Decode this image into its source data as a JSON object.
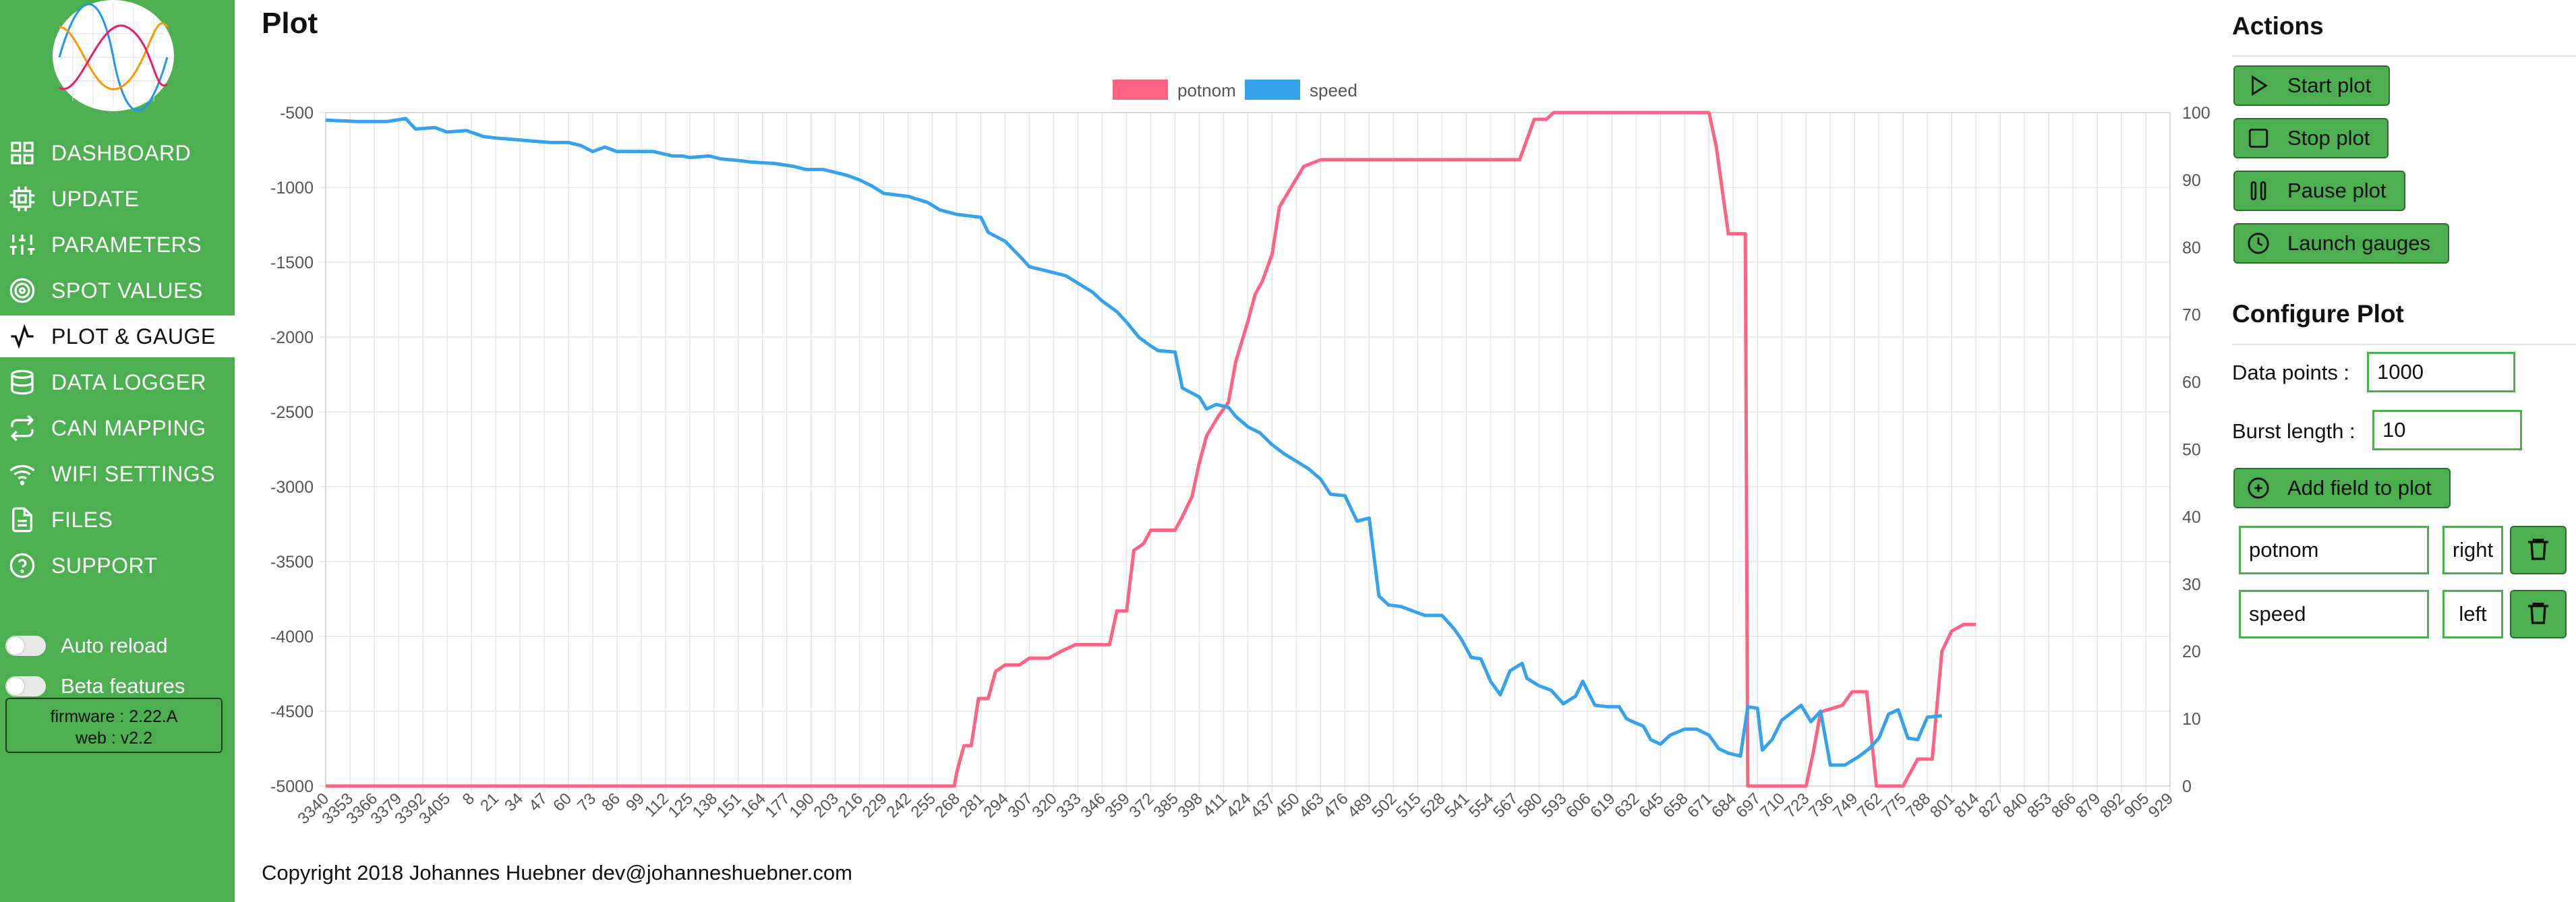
{
  "sidebar": {
    "items": [
      {
        "label": "DASHBOARD",
        "icon": "dashboard-grid-icon"
      },
      {
        "label": "UPDATE",
        "icon": "chip-icon"
      },
      {
        "label": "PARAMETERS",
        "icon": "sliders-icon"
      },
      {
        "label": "SPOT VALUES",
        "icon": "target-icon"
      },
      {
        "label": "PLOT & GAUGE",
        "icon": "activity-icon",
        "active": true
      },
      {
        "label": "DATA LOGGER",
        "icon": "database-icon"
      },
      {
        "label": "CAN MAPPING",
        "icon": "repeat-icon"
      },
      {
        "label": "WIFI SETTINGS",
        "icon": "wifi-icon"
      },
      {
        "label": "FILES",
        "icon": "file-icon"
      },
      {
        "label": "SUPPORT",
        "icon": "help-circle-icon"
      }
    ],
    "toggles": [
      {
        "label": "Auto reload",
        "on": false
      },
      {
        "label": "Beta features",
        "on": false
      }
    ],
    "firmware": "firmware : 2.22.A",
    "web": "web : v2.2"
  },
  "main": {
    "title": "Plot",
    "copyright": "Copyright 2018 Johannes Huebner dev@johanneshuebner.com"
  },
  "actions": {
    "title": "Actions",
    "start": "Start plot",
    "stop": "Stop plot",
    "pause": "Pause plot",
    "gauges": "Launch gauges"
  },
  "configure": {
    "title": "Configure Plot",
    "data_points_label": "Data points :",
    "data_points_value": "1000",
    "burst_length_label": "Burst length :",
    "burst_length_value": "10",
    "add_field": "Add field to plot",
    "fields": [
      {
        "name": "potnom",
        "axis": "right"
      },
      {
        "name": "speed",
        "axis": "left"
      }
    ]
  },
  "colors": {
    "green": "#4caf50",
    "potnom": "#ff6384",
    "speed": "#36a2eb"
  },
  "chart_data": {
    "type": "line",
    "title": "",
    "x_labels": [
      "3340",
      "3353",
      "3366",
      "3379",
      "3392",
      "3405",
      "8",
      "21",
      "34",
      "47",
      "60",
      "73",
      "86",
      "99",
      "112",
      "125",
      "138",
      "151",
      "164",
      "177",
      "190",
      "203",
      "216",
      "229",
      "242",
      "255",
      "268",
      "281",
      "294",
      "307",
      "320",
      "333",
      "346",
      "359",
      "372",
      "385",
      "398",
      "411",
      "424",
      "437",
      "450",
      "463",
      "476",
      "489",
      "502",
      "515",
      "528",
      "541",
      "554",
      "567",
      "580",
      "593",
      "606",
      "619",
      "632",
      "645",
      "658",
      "671",
      "684",
      "697",
      "710",
      "723",
      "736",
      "749",
      "762",
      "775",
      "788",
      "801",
      "814",
      "827",
      "840",
      "853",
      "866",
      "879",
      "892",
      "905",
      "929"
    ],
    "y_left": {
      "min": -5000,
      "max": -500,
      "ticks": [
        -500,
        -1000,
        -1500,
        -2000,
        -2500,
        -3000,
        -3500,
        -4000,
        -4500,
        -5000
      ]
    },
    "y_right": {
      "min": 0,
      "max": 100,
      "ticks": [
        100,
        90,
        80,
        70,
        60,
        50,
        40,
        30,
        20,
        10,
        0
      ]
    },
    "legend": {
      "position": "top",
      "entries": [
        "potnom",
        "speed"
      ]
    },
    "grid": true,
    "series": [
      {
        "name": "potnom",
        "axis": "right",
        "points": [
          [
            0,
            0
          ],
          [
            25.9,
            0
          ],
          [
            26.0,
            2
          ],
          [
            26.3,
            6
          ],
          [
            26.6,
            6
          ],
          [
            26.9,
            13
          ],
          [
            27.3,
            13
          ],
          [
            27.6,
            17
          ],
          [
            28.0,
            18
          ],
          [
            28.6,
            18
          ],
          [
            29.0,
            19
          ],
          [
            29.8,
            19
          ],
          [
            30.3,
            20
          ],
          [
            30.9,
            21
          ],
          [
            31.6,
            21
          ],
          [
            32.3,
            21
          ],
          [
            32.6,
            26
          ],
          [
            33.0,
            26
          ],
          [
            33.3,
            35
          ],
          [
            33.7,
            36
          ],
          [
            34.0,
            38
          ],
          [
            35.0,
            38
          ],
          [
            35.3,
            40
          ],
          [
            35.7,
            43
          ],
          [
            36.0,
            48
          ],
          [
            36.3,
            52
          ],
          [
            36.8,
            55
          ],
          [
            37.2,
            57
          ],
          [
            37.5,
            63
          ],
          [
            38.0,
            69
          ],
          [
            38.3,
            73
          ],
          [
            38.6,
            75
          ],
          [
            39.0,
            79
          ],
          [
            39.3,
            86
          ],
          [
            39.8,
            89
          ],
          [
            40.3,
            92
          ],
          [
            41.0,
            93
          ],
          [
            44.0,
            93
          ],
          [
            47.5,
            93
          ],
          [
            48.0,
            93
          ],
          [
            49.2,
            93
          ],
          [
            49.8,
            99
          ],
          [
            50.3,
            99
          ],
          [
            50.6,
            100
          ],
          [
            52.0,
            100
          ],
          [
            56.0,
            100
          ],
          [
            57.0,
            100
          ],
          [
            57.3,
            95
          ],
          [
            57.8,
            82
          ],
          [
            58.5,
            82
          ],
          [
            58.6,
            0
          ],
          [
            61.0,
            0
          ],
          [
            61.3,
            5
          ],
          [
            61.6,
            11
          ],
          [
            62.5,
            12
          ],
          [
            62.9,
            14
          ],
          [
            63.5,
            14
          ],
          [
            63.9,
            0
          ],
          [
            65.0,
            0
          ],
          [
            65.6,
            4
          ],
          [
            66.2,
            4
          ],
          [
            66.6,
            20
          ],
          [
            67.0,
            23
          ],
          [
            67.5,
            24
          ],
          [
            68.0,
            24
          ]
        ]
      },
      {
        "name": "speed",
        "axis": "left",
        "points": [
          [
            0,
            -550
          ],
          [
            1.3,
            -560
          ],
          [
            2.5,
            -560
          ],
          [
            3.3,
            -540
          ],
          [
            3.7,
            -610
          ],
          [
            4.5,
            -600
          ],
          [
            5.0,
            -630
          ],
          [
            5.8,
            -620
          ],
          [
            6.5,
            -660
          ],
          [
            7.0,
            -670
          ],
          [
            7.8,
            -680
          ],
          [
            8.5,
            -690
          ],
          [
            9.3,
            -700
          ],
          [
            10.0,
            -700
          ],
          [
            10.5,
            -720
          ],
          [
            11.0,
            -760
          ],
          [
            11.5,
            -730
          ],
          [
            12.0,
            -760
          ],
          [
            12.8,
            -760
          ],
          [
            13.5,
            -760
          ],
          [
            14.3,
            -790
          ],
          [
            14.7,
            -790
          ],
          [
            15.0,
            -800
          ],
          [
            15.8,
            -790
          ],
          [
            16.3,
            -810
          ],
          [
            17.0,
            -820
          ],
          [
            17.5,
            -830
          ],
          [
            18.5,
            -840
          ],
          [
            19.3,
            -860
          ],
          [
            19.8,
            -880
          ],
          [
            20.5,
            -880
          ],
          [
            21.5,
            -920
          ],
          [
            22.0,
            -950
          ],
          [
            22.5,
            -990
          ],
          [
            23.0,
            -1040
          ],
          [
            24.0,
            -1060
          ],
          [
            24.8,
            -1100
          ],
          [
            25.3,
            -1150
          ],
          [
            26.0,
            -1180
          ],
          [
            26.5,
            -1190
          ],
          [
            27.0,
            -1200
          ],
          [
            27.3,
            -1300
          ],
          [
            28.0,
            -1360
          ],
          [
            28.6,
            -1460
          ],
          [
            29.0,
            -1530
          ],
          [
            29.5,
            -1550
          ],
          [
            30.0,
            -1570
          ],
          [
            30.5,
            -1590
          ],
          [
            31.0,
            -1640
          ],
          [
            31.6,
            -1700
          ],
          [
            32.0,
            -1760
          ],
          [
            32.6,
            -1830
          ],
          [
            33.0,
            -1900
          ],
          [
            33.5,
            -2000
          ],
          [
            34.0,
            -2060
          ],
          [
            34.3,
            -2090
          ],
          [
            35.0,
            -2100
          ],
          [
            35.3,
            -2340
          ],
          [
            36.0,
            -2400
          ],
          [
            36.3,
            -2480
          ],
          [
            36.7,
            -2450
          ],
          [
            37.2,
            -2470
          ],
          [
            37.5,
            -2530
          ],
          [
            38.0,
            -2600
          ],
          [
            38.5,
            -2640
          ],
          [
            39.0,
            -2720
          ],
          [
            39.5,
            -2780
          ],
          [
            40.0,
            -2830
          ],
          [
            40.5,
            -2880
          ],
          [
            41.0,
            -2950
          ],
          [
            41.4,
            -3050
          ],
          [
            42.0,
            -3060
          ],
          [
            42.5,
            -3230
          ],
          [
            43.0,
            -3210
          ],
          [
            43.4,
            -3730
          ],
          [
            43.8,
            -3790
          ],
          [
            44.3,
            -3800
          ],
          [
            44.8,
            -3830
          ],
          [
            45.3,
            -3860
          ],
          [
            46.0,
            -3860
          ],
          [
            46.5,
            -3950
          ],
          [
            46.8,
            -4020
          ],
          [
            47.2,
            -4140
          ],
          [
            47.6,
            -4150
          ],
          [
            48.0,
            -4300
          ],
          [
            48.4,
            -4390
          ],
          [
            48.8,
            -4230
          ],
          [
            49.3,
            -4180
          ],
          [
            49.5,
            -4280
          ],
          [
            50.0,
            -4330
          ],
          [
            50.5,
            -4360
          ],
          [
            51.0,
            -4450
          ],
          [
            51.5,
            -4400
          ],
          [
            51.8,
            -4300
          ],
          [
            52.3,
            -4460
          ],
          [
            52.8,
            -4470
          ],
          [
            53.3,
            -4470
          ],
          [
            53.6,
            -4550
          ],
          [
            54.0,
            -4580
          ],
          [
            54.3,
            -4600
          ],
          [
            54.6,
            -4690
          ],
          [
            55.0,
            -4720
          ],
          [
            55.4,
            -4660
          ],
          [
            56.0,
            -4620
          ],
          [
            56.5,
            -4620
          ],
          [
            57.0,
            -4660
          ],
          [
            57.4,
            -4750
          ],
          [
            57.8,
            -4780
          ],
          [
            58.3,
            -4800
          ],
          [
            58.6,
            -4470
          ],
          [
            59.0,
            -4480
          ],
          [
            59.2,
            -4760
          ],
          [
            59.6,
            -4690
          ],
          [
            60.0,
            -4560
          ],
          [
            60.4,
            -4510
          ],
          [
            60.8,
            -4460
          ],
          [
            61.2,
            -4570
          ],
          [
            61.6,
            -4500
          ],
          [
            62.0,
            -4860
          ],
          [
            62.6,
            -4860
          ],
          [
            63.2,
            -4800
          ],
          [
            63.6,
            -4750
          ],
          [
            64.0,
            -4680
          ],
          [
            64.4,
            -4520
          ],
          [
            64.8,
            -4490
          ],
          [
            65.2,
            -4680
          ],
          [
            65.6,
            -4690
          ],
          [
            66.0,
            -4540
          ],
          [
            66.6,
            -4530
          ]
        ]
      }
    ]
  }
}
